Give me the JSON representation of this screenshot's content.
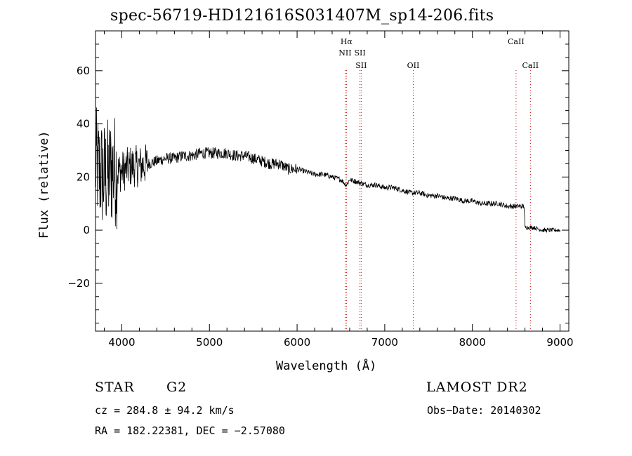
{
  "chart_data": {
    "type": "line",
    "title": "spec-56719-HD121616S031407M_sp14-206.fits",
    "xlabel": "Wavelength (Å)",
    "ylabel": "Flux (relative)",
    "xlim": [
      3700,
      9100
    ],
    "ylim": [
      -38,
      75
    ],
    "x_ticks": [
      4000,
      5000,
      6000,
      7000,
      8000,
      9000
    ],
    "y_ticks": [
      -20,
      0,
      20,
      40,
      60
    ],
    "grid": false,
    "series": [
      {
        "x": [
          3700,
          3750,
          3800,
          3850,
          3900,
          3950,
          4000,
          4100,
          4200,
          4300,
          4400,
          4500,
          4600,
          4700,
          4800,
          4900,
          5000,
          5100,
          5200,
          5300,
          5400,
          5500,
          5600,
          5700,
          5800,
          5900,
          6000,
          6100,
          6200,
          6300,
          6400,
          6500,
          6563,
          6600,
          6700,
          6800,
          6900,
          7000,
          7100,
          7200,
          7300,
          7400,
          7500,
          7600,
          7700,
          7800,
          7900,
          8000,
          8100,
          8200,
          8300,
          8400,
          8500,
          8550,
          8590,
          8600,
          8700,
          8800,
          8900,
          9000
        ],
        "y": [
          25,
          22,
          20,
          21,
          23,
          22,
          22,
          24,
          24,
          25,
          26,
          27,
          27,
          28,
          28,
          29,
          29,
          29,
          29,
          28,
          28,
          27,
          26,
          25,
          25,
          23,
          23,
          22,
          21,
          21,
          20,
          19,
          17,
          19,
          18,
          17,
          17,
          16,
          16,
          15,
          14,
          14,
          13,
          13,
          12,
          12,
          11,
          11,
          10,
          10,
          10,
          9,
          9,
          9,
          9,
          1,
          1,
          0,
          0,
          0
        ]
      }
    ],
    "lines": [
      {
        "label": "Hα",
        "x": 6563,
        "label_row": 0
      },
      {
        "label": "NII",
        "x": 6548,
        "label_row": 1
      },
      {
        "label": "SII",
        "x": 6717,
        "label_row": 1
      },
      {
        "label": "SII",
        "x": 6731,
        "label_row": 2
      },
      {
        "label": "OII",
        "x": 7325,
        "label_row": 2
      },
      {
        "label": "CaII",
        "x": 8498,
        "label_row": 0
      },
      {
        "label": "CaII",
        "x": 8662,
        "label_row": 2
      }
    ],
    "line_color": "#cc0000"
  },
  "info": {
    "object": "STAR",
    "subclass": "G2",
    "cz": "cz = 284.8 ± 94.2 km/s",
    "radec": "RA = 182.22381, DEC =  −2.57080",
    "survey": "LAMOST DR2",
    "obsdate": "Obs−Date: 20140302"
  }
}
